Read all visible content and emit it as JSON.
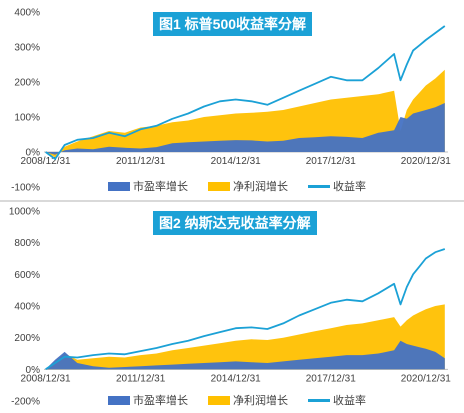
{
  "chart_data": [
    {
      "type": "area",
      "title": "图1 标普500收益率分解",
      "x_tick_labels": [
        "2008/12/31",
        "2011/12/31",
        "2014/12/31",
        "2017/12/31",
        "2020/12/31"
      ],
      "y_tick_labels": [
        "-100%",
        "0%",
        "100%",
        "200%",
        "300%",
        "400%"
      ],
      "ylim": [
        -100,
        400
      ],
      "y_unit": "%",
      "grid": false,
      "legend_position": "bottom",
      "colors": {
        "pe": "#4472c4",
        "profit": "#ffc000",
        "return": "#1ba1d6"
      },
      "series": [
        {
          "name": "市盈率增长",
          "kind": "area",
          "x": [
            2009.0,
            2009.3,
            2009.6,
            2010.0,
            2010.5,
            2011.0,
            2011.5,
            2012.0,
            2012.5,
            2013.0,
            2013.5,
            2014.0,
            2014.5,
            2015.0,
            2015.5,
            2016.0,
            2016.5,
            2017.0,
            2017.5,
            2018.0,
            2018.5,
            2019.0,
            2019.5,
            2020.0,
            2020.2,
            2020.4,
            2020.6,
            2020.8,
            2021.0,
            2021.3,
            2021.6
          ],
          "y": [
            0,
            -8,
            5,
            10,
            8,
            15,
            12,
            10,
            14,
            25,
            28,
            30,
            32,
            34,
            33,
            30,
            32,
            40,
            42,
            45,
            43,
            40,
            55,
            62,
            100,
            95,
            110,
            115,
            120,
            128,
            140
          ]
        },
        {
          "name": "净利润增长",
          "kind": "area",
          "x": [
            2009.0,
            2009.3,
            2009.6,
            2010.0,
            2010.5,
            2011.0,
            2011.5,
            2012.0,
            2012.5,
            2013.0,
            2013.5,
            2014.0,
            2014.5,
            2015.0,
            2015.5,
            2016.0,
            2016.5,
            2017.0,
            2017.5,
            2018.0,
            2018.5,
            2019.0,
            2019.5,
            2020.0,
            2020.2,
            2020.4,
            2020.6,
            2020.8,
            2021.0,
            2021.3,
            2021.6
          ],
          "y": [
            0,
            -15,
            15,
            30,
            45,
            60,
            55,
            70,
            75,
            85,
            90,
            100,
            105,
            110,
            112,
            115,
            120,
            130,
            140,
            150,
            155,
            160,
            165,
            175,
            60,
            120,
            150,
            170,
            190,
            210,
            235
          ]
        },
        {
          "name": "收益率",
          "kind": "line",
          "x": [
            2009.0,
            2009.3,
            2009.6,
            2010.0,
            2010.5,
            2011.0,
            2011.5,
            2012.0,
            2012.5,
            2013.0,
            2013.5,
            2014.0,
            2014.5,
            2015.0,
            2015.5,
            2016.0,
            2016.5,
            2017.0,
            2017.5,
            2018.0,
            2018.5,
            2019.0,
            2019.5,
            2020.0,
            2020.2,
            2020.4,
            2020.6,
            2020.8,
            2021.0,
            2021.3,
            2021.6
          ],
          "y": [
            0,
            -20,
            20,
            35,
            40,
            55,
            45,
            65,
            75,
            95,
            110,
            130,
            145,
            150,
            145,
            135,
            155,
            175,
            195,
            215,
            205,
            205,
            240,
            280,
            205,
            250,
            290,
            305,
            320,
            340,
            360
          ]
        }
      ]
    },
    {
      "type": "area",
      "title": "图2 纳斯达克收益率分解",
      "x_tick_labels": [
        "2008/12/31",
        "2011/12/31",
        "2014/12/31",
        "2017/12/31",
        "2020/12/31"
      ],
      "y_tick_labels": [
        "-200%",
        "0%",
        "200%",
        "400%",
        "600%",
        "800%",
        "1000%"
      ],
      "ylim": [
        -200,
        1000
      ],
      "y_unit": "%",
      "grid": false,
      "legend_position": "bottom",
      "colors": {
        "pe": "#4472c4",
        "profit": "#ffc000",
        "return": "#1ba1d6"
      },
      "series": [
        {
          "name": "市盈率增长",
          "kind": "area",
          "x": [
            2009.0,
            2009.3,
            2009.6,
            2010.0,
            2010.5,
            2011.0,
            2011.5,
            2012.0,
            2012.5,
            2013.0,
            2013.5,
            2014.0,
            2014.5,
            2015.0,
            2015.5,
            2016.0,
            2016.5,
            2017.0,
            2017.5,
            2018.0,
            2018.5,
            2019.0,
            2019.5,
            2020.0,
            2020.2,
            2020.4,
            2020.6,
            2020.8,
            2021.0,
            2021.3,
            2021.6
          ],
          "y": [
            0,
            60,
            110,
            40,
            20,
            10,
            15,
            20,
            25,
            30,
            35,
            40,
            45,
            50,
            45,
            40,
            50,
            60,
            70,
            80,
            90,
            90,
            100,
            120,
            180,
            160,
            150,
            140,
            130,
            110,
            70
          ]
        },
        {
          "name": "净利润增长",
          "kind": "area",
          "x": [
            2009.0,
            2009.3,
            2009.6,
            2010.0,
            2010.5,
            2011.0,
            2011.5,
            2012.0,
            2012.5,
            2013.0,
            2013.5,
            2014.0,
            2014.5,
            2015.0,
            2015.5,
            2016.0,
            2016.5,
            2017.0,
            2017.5,
            2018.0,
            2018.5,
            2019.0,
            2019.5,
            2020.0,
            2020.2,
            2020.4,
            2020.6,
            2020.8,
            2021.0,
            2021.3,
            2021.6
          ],
          "y": [
            0,
            50,
            100,
            60,
            70,
            80,
            75,
            90,
            100,
            120,
            135,
            150,
            165,
            180,
            190,
            185,
            200,
            220,
            240,
            260,
            280,
            290,
            310,
            330,
            270,
            310,
            340,
            360,
            380,
            400,
            410
          ]
        },
        {
          "name": "收益率",
          "kind": "line",
          "x": [
            2009.0,
            2009.3,
            2009.6,
            2010.0,
            2010.5,
            2011.0,
            2011.5,
            2012.0,
            2012.5,
            2013.0,
            2013.5,
            2014.0,
            2014.5,
            2015.0,
            2015.5,
            2016.0,
            2016.5,
            2017.0,
            2017.5,
            2018.0,
            2018.5,
            2019.0,
            2019.5,
            2020.0,
            2020.2,
            2020.4,
            2020.6,
            2020.8,
            2021.0,
            2021.3,
            2021.6
          ],
          "y": [
            0,
            40,
            80,
            75,
            90,
            100,
            95,
            115,
            135,
            160,
            180,
            210,
            235,
            260,
            265,
            255,
            290,
            340,
            380,
            420,
            440,
            430,
            480,
            540,
            410,
            520,
            600,
            650,
            700,
            740,
            760
          ]
        }
      ]
    }
  ]
}
